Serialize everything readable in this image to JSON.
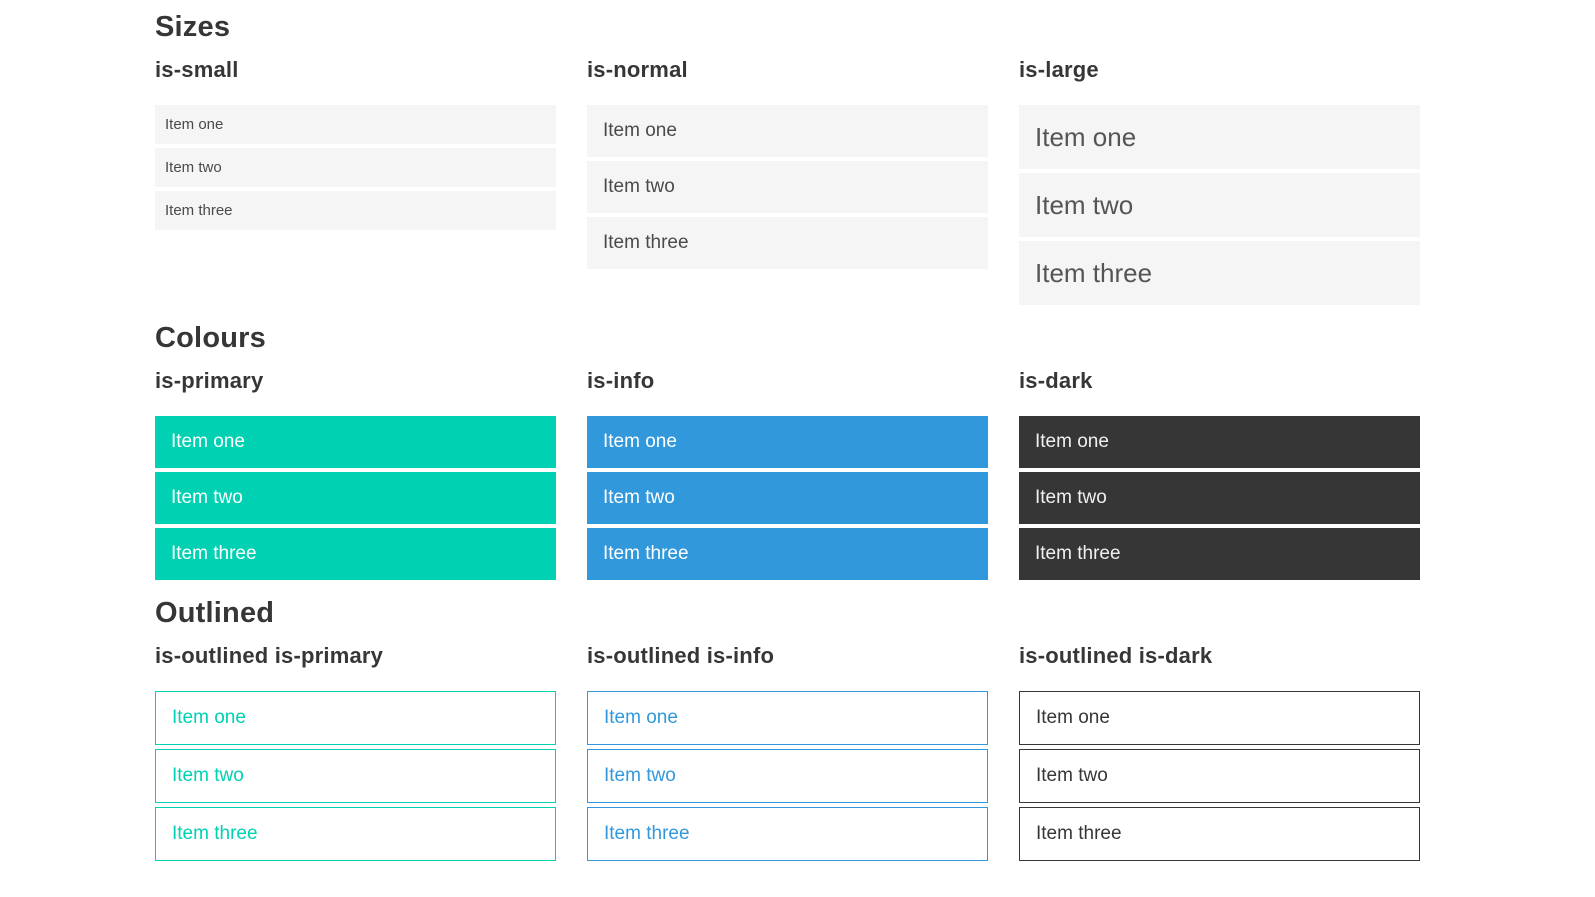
{
  "sections": [
    {
      "title": "Sizes",
      "columns": [
        {
          "label": "is-small",
          "variant": "small",
          "items": [
            "Item one",
            "Item two",
            "Item three"
          ]
        },
        {
          "label": "is-normal",
          "variant": "normal",
          "items": [
            "Item one",
            "Item two",
            "Item three"
          ]
        },
        {
          "label": "is-large",
          "variant": "large",
          "items": [
            "Item one",
            "Item two",
            "Item three"
          ]
        }
      ]
    },
    {
      "title": "Colours",
      "columns": [
        {
          "label": "is-primary",
          "variant": "primary",
          "items": [
            "Item one",
            "Item two",
            "Item three"
          ]
        },
        {
          "label": "is-info",
          "variant": "info",
          "items": [
            "Item one",
            "Item two",
            "Item three"
          ]
        },
        {
          "label": "is-dark",
          "variant": "dark",
          "items": [
            "Item one",
            "Item two",
            "Item three"
          ]
        }
      ]
    },
    {
      "title": "Outlined",
      "columns": [
        {
          "label": "is-outlined is-primary",
          "variant": "outlined-primary",
          "items": [
            "Item one",
            "Item two",
            "Item three"
          ]
        },
        {
          "label": "is-outlined is-info",
          "variant": "outlined-info",
          "items": [
            "Item one",
            "Item two",
            "Item three"
          ]
        },
        {
          "label": "is-outlined is-dark",
          "variant": "outlined-dark",
          "items": [
            "Item one",
            "Item two",
            "Item three"
          ]
        }
      ]
    }
  ],
  "colors": {
    "primary": "#00d1b2",
    "info": "#3298dc",
    "dark": "#363636",
    "item-bg": "#f5f5f5",
    "item-text": "#4a4a4a",
    "heading": "#363636"
  }
}
